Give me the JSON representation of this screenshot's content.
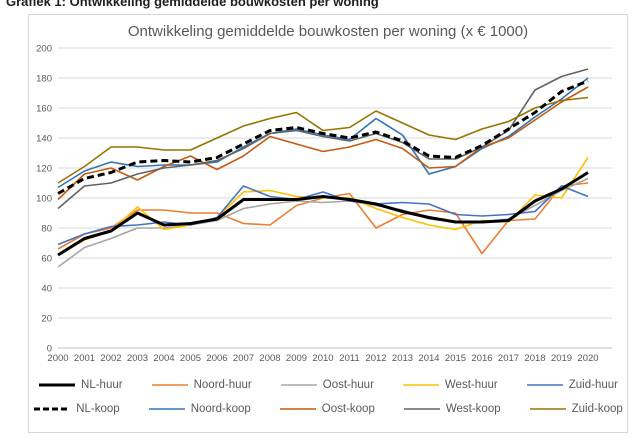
{
  "caption": "Grafiek 1: Ontwikkeling gemiddelde bouwkosten per woning",
  "chart_data": {
    "type": "line",
    "title": "Ontwikkeling gemiddelde bouwkosten per woning (x € 1000)",
    "x": [
      2000,
      2001,
      2002,
      2003,
      2004,
      2005,
      2006,
      2007,
      2008,
      2009,
      2010,
      2011,
      2012,
      2013,
      2014,
      2015,
      2016,
      2017,
      2018,
      2019,
      2020
    ],
    "ylim": [
      0,
      200
    ],
    "ytick_step": 20,
    "yticks": [
      0,
      20,
      40,
      60,
      80,
      100,
      120,
      140,
      160,
      180,
      200
    ],
    "grid": "horizontal-only",
    "legend_position": "bottom",
    "axis_label_color": "#595959",
    "gridline_color": "#d9d9d9",
    "series": [
      {
        "name": "NL-huur",
        "color": "#000000",
        "width": 3,
        "dash": null,
        "values": [
          62,
          73,
          78,
          90,
          82,
          83,
          86,
          99,
          99,
          99,
          101,
          99,
          96,
          91,
          87,
          84,
          84,
          85,
          98,
          106,
          117
        ]
      },
      {
        "name": "Noord-huur",
        "color": "#ED7D31",
        "width": 1.6,
        "dash": null,
        "values": [
          66,
          76,
          80,
          92,
          92,
          90,
          90,
          83,
          82,
          95,
          100,
          103,
          80,
          89,
          92,
          90,
          63,
          85,
          86,
          108,
          110
        ]
      },
      {
        "name": "Oost-huur",
        "color": "#A5A5A5",
        "width": 1.6,
        "dash": null,
        "values": [
          54,
          67,
          73,
          80,
          80,
          82,
          85,
          93,
          96,
          98,
          97,
          98,
          95,
          92,
          86,
          84,
          84,
          86,
          95,
          105,
          113
        ]
      },
      {
        "name": "West-huur",
        "color": "#FFC000",
        "width": 1.6,
        "dash": null,
        "values": [
          62,
          72,
          78,
          94,
          79,
          82,
          87,
          104,
          105,
          101,
          100,
          100,
          93,
          87,
          82,
          79,
          85,
          84,
          102,
          100,
          127
        ]
      },
      {
        "name": "Zuid-huur",
        "color": "#4472C4",
        "width": 1.6,
        "dash": null,
        "values": [
          69,
          76,
          81,
          82,
          84,
          82,
          87,
          108,
          101,
          99,
          104,
          98,
          96,
          97,
          96,
          89,
          88,
          89,
          91,
          108,
          101
        ]
      },
      {
        "name": "NL-koop",
        "color": "#000000",
        "width": 3,
        "dash": "7 4",
        "values": [
          103,
          113,
          117,
          124,
          125,
          124,
          127,
          136,
          145,
          147,
          143,
          140,
          144,
          138,
          128,
          127,
          135,
          146,
          157,
          171,
          178
        ]
      },
      {
        "name": "Noord-koop",
        "color": "#2E75B6",
        "width": 1.6,
        "dash": null,
        "values": [
          107,
          118,
          124,
          121,
          122,
          122,
          124,
          134,
          143,
          146,
          142,
          139,
          153,
          142,
          116,
          121,
          133,
          141,
          154,
          166,
          180
        ]
      },
      {
        "name": "Oost-koop",
        "color": "#C55A11",
        "width": 1.6,
        "dash": null,
        "values": [
          99,
          116,
          120,
          112,
          121,
          128,
          119,
          128,
          141,
          136,
          131,
          134,
          139,
          133,
          120,
          121,
          134,
          140,
          152,
          164,
          174
        ]
      },
      {
        "name": "West-koop",
        "color": "#636363",
        "width": 1.6,
        "dash": null,
        "values": [
          93,
          108,
          110,
          116,
          120,
          122,
          125,
          133,
          143,
          145,
          141,
          138,
          143,
          137,
          126,
          126,
          134,
          145,
          172,
          181,
          186
        ]
      },
      {
        "name": "Zuid-koop",
        "color": "#997300",
        "width": 1.6,
        "dash": null,
        "values": [
          110,
          121,
          134,
          134,
          132,
          132,
          140,
          148,
          153,
          157,
          145,
          147,
          158,
          150,
          142,
          139,
          146,
          151,
          160,
          165,
          167
        ]
      }
    ]
  }
}
